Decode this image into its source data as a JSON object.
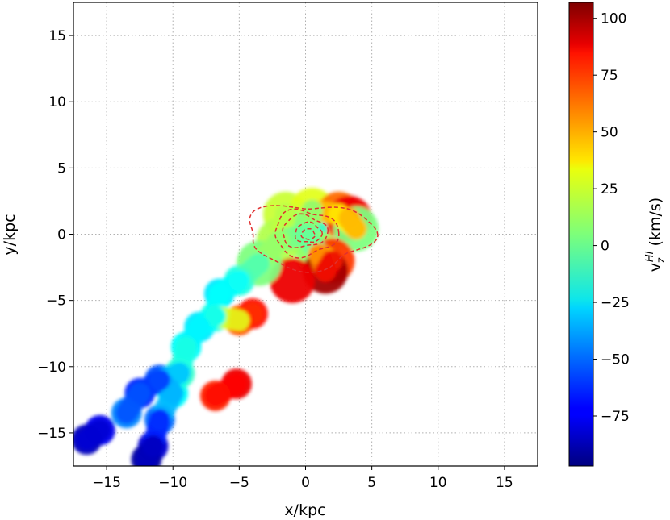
{
  "chart_data": {
    "type": "heatmap",
    "xlabel": "x/kpc",
    "ylabel": "y/kpc",
    "xlim": [
      -17.5,
      17.5
    ],
    "ylim": [
      -17.5,
      17.5
    ],
    "x_ticks": [
      -15,
      -10,
      -5,
      0,
      5,
      10,
      15
    ],
    "y_ticks": [
      -15,
      -10,
      -5,
      0,
      5,
      10,
      15
    ],
    "x_tick_labels": [
      "−15",
      "−10",
      "−5",
      "0",
      "5",
      "10",
      "15"
    ],
    "y_tick_labels": [
      "−15",
      "−10",
      "−5",
      "0",
      "5",
      "10",
      "15"
    ],
    "grid": true,
    "grid_style": "dotted",
    "colorbar": {
      "label_main": "v",
      "label_sub": "z",
      "label_sup": "HI",
      "label_unit": " (km/s)",
      "range": [
        -97,
        107
      ],
      "ticks": [
        -75,
        -50,
        -25,
        0,
        25,
        50,
        75,
        100
      ],
      "tick_labels": [
        "−75",
        "−50",
        "−25",
        "0",
        "25",
        "50",
        "75",
        "100"
      ],
      "colormap": "jet"
    },
    "contour_color": "#e03030",
    "contour_style": "dashed",
    "hi_velocity_map": [
      {
        "x": -1.5,
        "y": 1.5,
        "v": 20
      },
      {
        "x": 0.5,
        "y": 1.8,
        "v": 25
      },
      {
        "x": 2.5,
        "y": 1.5,
        "v": 60
      },
      {
        "x": 3.3,
        "y": 1.2,
        "v": 85
      },
      {
        "x": 3.8,
        "y": 0.4,
        "v": 5
      },
      {
        "x": 0.0,
        "y": 0.0,
        "v": -10
      },
      {
        "x": -2.0,
        "y": -0.5,
        "v": 15
      },
      {
        "x": 1.0,
        "y": -1.5,
        "v": 10
      },
      {
        "x": 2.0,
        "y": -2.0,
        "v": 70
      },
      {
        "x": 1.5,
        "y": -2.8,
        "v": 100
      },
      {
        "x": -1.0,
        "y": -3.5,
        "v": 85
      },
      {
        "x": -3.5,
        "y": -2.2,
        "v": 5
      },
      {
        "x": -5.0,
        "y": -3.5,
        "v": -15
      },
      {
        "x": -6.5,
        "y": -4.5,
        "v": -25
      },
      {
        "x": -5.0,
        "y": -6.5,
        "v": 65
      },
      {
        "x": -4.0,
        "y": -6.0,
        "v": 80
      },
      {
        "x": -6.8,
        "y": -6.2,
        "v": -15
      },
      {
        "x": -8.0,
        "y": -7.0,
        "v": -25
      },
      {
        "x": -9.0,
        "y": -8.5,
        "v": -20
      },
      {
        "x": -9.5,
        "y": -10.5,
        "v": -10
      },
      {
        "x": -10.0,
        "y": -12.0,
        "v": -20
      },
      {
        "x": -11.0,
        "y": -11.0,
        "v": -55
      },
      {
        "x": -12.5,
        "y": -12.0,
        "v": -65
      },
      {
        "x": -13.5,
        "y": -13.5,
        "v": -45
      },
      {
        "x": -15.5,
        "y": -14.8,
        "v": -75
      },
      {
        "x": -16.5,
        "y": -15.5,
        "v": -85
      },
      {
        "x": -11.0,
        "y": -14.0,
        "v": -50
      },
      {
        "x": -11.5,
        "y": -16.0,
        "v": -80
      },
      {
        "x": -12.0,
        "y": -17.0,
        "v": -90
      },
      {
        "x": -5.2,
        "y": -11.3,
        "v": 85
      },
      {
        "x": -6.8,
        "y": -12.2,
        "v": 75
      }
    ]
  }
}
